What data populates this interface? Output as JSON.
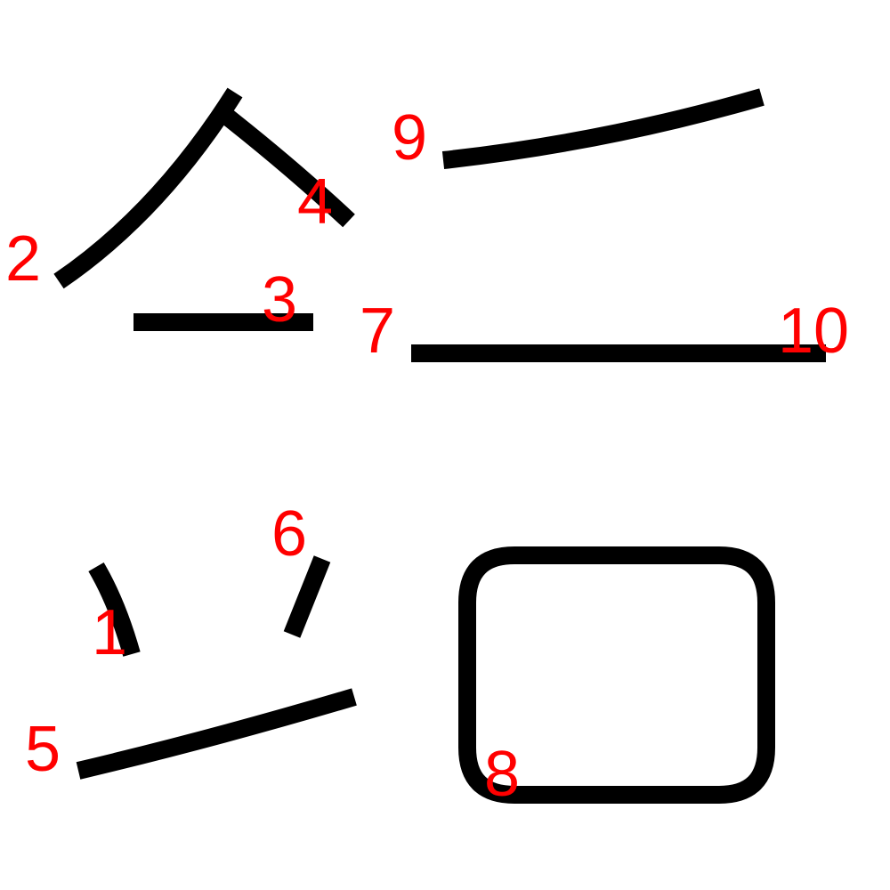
{
  "colors": {
    "background": "#ffffff",
    "stroke": "#000000",
    "label": "#ff0000"
  },
  "strokes": [
    {
      "number": "1"
    },
    {
      "number": "2"
    },
    {
      "number": "3"
    },
    {
      "number": "4"
    },
    {
      "number": "5"
    },
    {
      "number": "6"
    },
    {
      "number": "7"
    },
    {
      "number": "8"
    },
    {
      "number": "9"
    },
    {
      "number": "10"
    }
  ]
}
